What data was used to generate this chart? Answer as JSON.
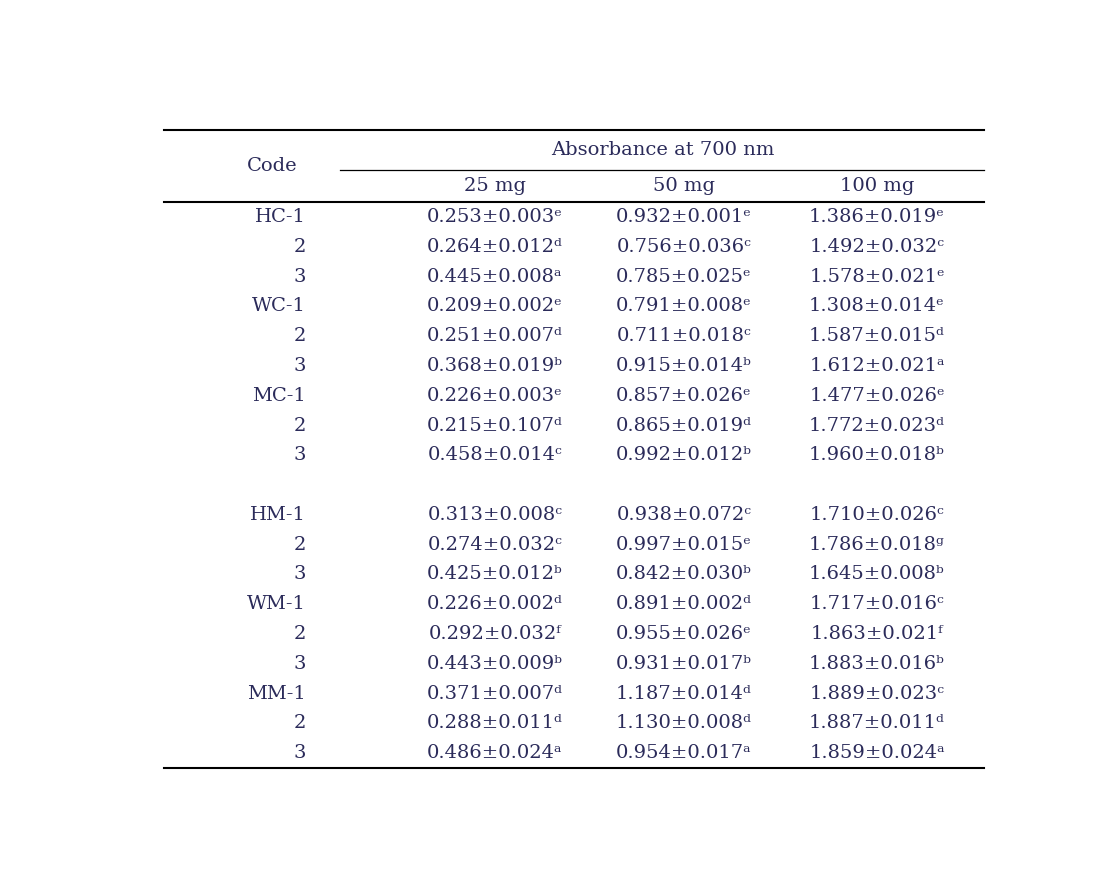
{
  "title": "Absorbance at 700 nm",
  "col_header": "Code",
  "sub_headers": [
    "25 mg",
    "50 mg",
    "100 mg"
  ],
  "rows": [
    {
      "code": "HC-1",
      "vals": [
        "0.253±0.003ᵉ",
        "0.932±0.001ᵉ",
        "1.386±0.019ᵉ"
      ]
    },
    {
      "code": "2",
      "vals": [
        "0.264±0.012ᵈ",
        "0.756±0.036ᶜ",
        "1.492±0.032ᶜ"
      ]
    },
    {
      "code": "3",
      "vals": [
        "0.445±0.008ᵃ",
        "0.785±0.025ᵉ",
        "1.578±0.021ᵉ"
      ]
    },
    {
      "code": "WC-1",
      "vals": [
        "0.209±0.002ᵉ",
        "0.791±0.008ᵉ",
        "1.308±0.014ᵉ"
      ]
    },
    {
      "code": "2",
      "vals": [
        "0.251±0.007ᵈ",
        "0.711±0.018ᶜ",
        "1.587±0.015ᵈ"
      ]
    },
    {
      "code": "3",
      "vals": [
        "0.368±0.019ᵇ",
        "0.915±0.014ᵇ",
        "1.612±0.021ᵃ"
      ]
    },
    {
      "code": "MC-1",
      "vals": [
        "0.226±0.003ᵉ",
        "0.857±0.026ᵉ",
        "1.477±0.026ᵉ"
      ]
    },
    {
      "code": "2",
      "vals": [
        "0.215±0.107ᵈ",
        "0.865±0.019ᵈ",
        "1.772±0.023ᵈ"
      ]
    },
    {
      "code": "3",
      "vals": [
        "0.458±0.014ᶜ",
        "0.992±0.012ᵇ",
        "1.960±0.018ᵇ"
      ]
    },
    {
      "code": "",
      "vals": [
        "",
        "",
        ""
      ]
    },
    {
      "code": "HM-1",
      "vals": [
        "0.313±0.008ᶜ",
        "0.938±0.072ᶜ",
        "1.710±0.026ᶜ"
      ]
    },
    {
      "code": "2",
      "vals": [
        "0.274±0.032ᶜ",
        "0.997±0.015ᵉ",
        "1.786±0.018ᵍ"
      ]
    },
    {
      "code": "3",
      "vals": [
        "0.425±0.012ᵇ",
        "0.842±0.030ᵇ",
        "1.645±0.008ᵇ"
      ]
    },
    {
      "code": "WM-1",
      "vals": [
        "0.226±0.002ᵈ",
        "0.891±0.002ᵈ",
        "1.717±0.016ᶜ"
      ]
    },
    {
      "code": "2",
      "vals": [
        "0.292±0.032ᶠ",
        "0.955±0.026ᵉ",
        "1.863±0.021ᶠ"
      ]
    },
    {
      "code": "3",
      "vals": [
        "0.443±0.009ᵇ",
        "0.931±0.017ᵇ",
        "1.883±0.016ᵇ"
      ]
    },
    {
      "code": "MM-1",
      "vals": [
        "0.371±0.007ᵈ",
        "1.187±0.014ᵈ",
        "1.889±0.023ᶜ"
      ]
    },
    {
      "code": "2",
      "vals": [
        "0.288±0.011ᵈ",
        "1.130±0.008ᵈ",
        "1.887±0.011ᵈ"
      ]
    },
    {
      "code": "3",
      "vals": [
        "0.486±0.024ᵃ",
        "0.954±0.017ᵃ",
        "1.859±0.024ᵃ"
      ]
    }
  ],
  "bg_color": "#ffffff",
  "text_color": "#2b2b5a",
  "line_color": "#000000",
  "font_size": 14,
  "header_font_size": 14,
  "figsize": [
    11.08,
    8.82
  ],
  "dpi": 100
}
